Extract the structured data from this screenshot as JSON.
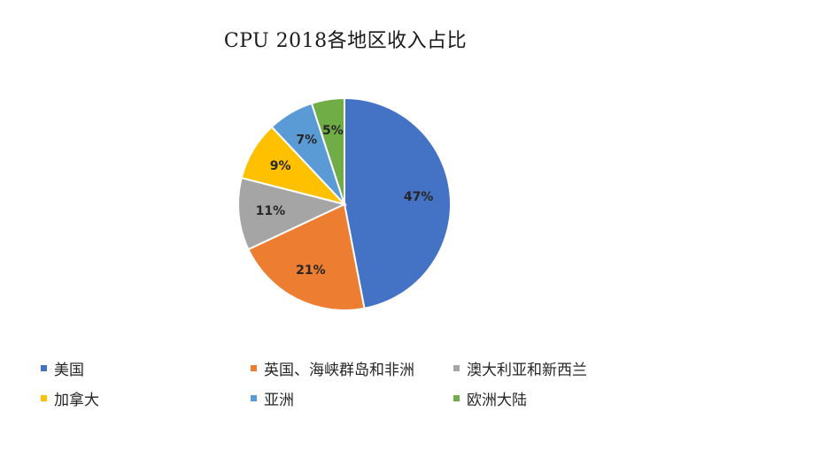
{
  "chart_data": {
    "type": "pie",
    "title": "CPU 2018各地区收入占比",
    "categories": [
      "美国",
      "英国、海峡群岛和非洲",
      "澳大利亚和新西兰",
      "加拿大",
      "亚洲",
      "欧洲大陆"
    ],
    "values": [
      47,
      21,
      11,
      9,
      7,
      5
    ],
    "data_labels": [
      "47%",
      "21%",
      "11%",
      "9%",
      "7%",
      "5%"
    ],
    "colors": [
      "#4472C4",
      "#ED7D31",
      "#A5A5A5",
      "#FFC000",
      "#5B9BD5",
      "#70AD47"
    ],
    "legend_position": "bottom",
    "start_angle": "top (12 o'clock)",
    "direction": "clockwise"
  }
}
